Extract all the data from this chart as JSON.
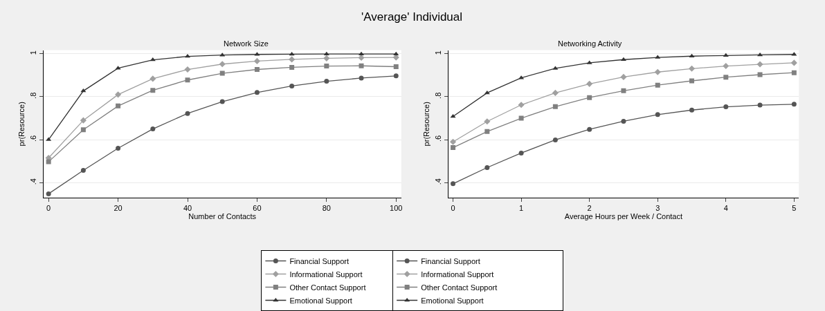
{
  "chart_data": [
    {
      "type": "line",
      "title": "Network Size",
      "annotations": [
        "'Average' Individual"
      ],
      "xlabel": "Number of Contacts",
      "ylabel": "pr(Resource)",
      "x": [
        0,
        10,
        20,
        30,
        40,
        50,
        60,
        70,
        80,
        90,
        100
      ],
      "xlim": [
        -1.5,
        101.5
      ],
      "xticks": [
        0,
        20,
        40,
        60,
        80,
        100
      ],
      "ylim": [
        0.33,
        1.017
      ],
      "yticks": [
        {
          "value": 0.4,
          "label": ".4"
        },
        {
          "value": 0.6,
          "label": ".6"
        },
        {
          "value": 0.8,
          "label": ".8"
        },
        {
          "value": 1,
          "label": "1"
        }
      ],
      "grid": "y",
      "legend": "bottom",
      "line_style": "solid",
      "series": [
        {
          "name": "Financial Support",
          "color": "#555555",
          "marker": "circle",
          "values": [
            0.348,
            0.457,
            0.56,
            0.65,
            0.722,
            0.777,
            0.82,
            0.85,
            0.872,
            0.887,
            0.897
          ]
        },
        {
          "name": "Informational Support",
          "color": "#a0a0a0",
          "marker": "diamond",
          "values": [
            0.515,
            0.69,
            0.81,
            0.884,
            0.927,
            0.952,
            0.966,
            0.974,
            0.979,
            0.982,
            0.983
          ]
        },
        {
          "name": "Other Contact Support",
          "color": "#808080",
          "marker": "square",
          "values": [
            0.497,
            0.646,
            0.757,
            0.83,
            0.878,
            0.909,
            0.927,
            0.937,
            0.943,
            0.944,
            0.94
          ]
        },
        {
          "name": "Emotional Support",
          "color": "#333333",
          "marker": "triangle",
          "values": [
            0.6,
            0.827,
            0.933,
            0.972,
            0.988,
            0.994,
            0.997,
            0.998,
            0.999,
            0.999,
            0.999
          ]
        }
      ]
    },
    {
      "type": "line",
      "title": "Networking Activity",
      "xlabel": "Average Hours per Week / Contact",
      "ylabel": "pr(Resource)",
      "x": [
        0,
        0.5,
        1,
        1.5,
        2,
        2.5,
        3,
        3.5,
        4,
        4.5,
        5
      ],
      "xlim": [
        -0.07,
        5.07
      ],
      "xticks": [
        0,
        1,
        2,
        3,
        4,
        5
      ],
      "ylim": [
        0.33,
        1.017
      ],
      "yticks": [
        {
          "value": 0.4,
          "label": ".4"
        },
        {
          "value": 0.6,
          "label": ".6"
        },
        {
          "value": 0.8,
          "label": ".8"
        },
        {
          "value": 1,
          "label": "1"
        }
      ],
      "grid": "y",
      "legend": "bottom",
      "line_style": "solid",
      "series": [
        {
          "name": "Financial Support",
          "color": "#555555",
          "marker": "circle",
          "values": [
            0.395,
            0.47,
            0.538,
            0.599,
            0.648,
            0.686,
            0.717,
            0.738,
            0.753,
            0.761,
            0.765
          ]
        },
        {
          "name": "Informational Support",
          "color": "#a0a0a0",
          "marker": "diamond",
          "values": [
            0.59,
            0.685,
            0.762,
            0.818,
            0.86,
            0.892,
            0.915,
            0.931,
            0.943,
            0.951,
            0.958
          ]
        },
        {
          "name": "Other Contact Support",
          "color": "#808080",
          "marker": "square",
          "values": [
            0.563,
            0.638,
            0.7,
            0.754,
            0.796,
            0.828,
            0.854,
            0.874,
            0.891,
            0.903,
            0.912
          ]
        },
        {
          "name": "Emotional Support",
          "color": "#333333",
          "marker": "triangle",
          "values": [
            0.708,
            0.818,
            0.888,
            0.932,
            0.958,
            0.973,
            0.983,
            0.989,
            0.992,
            0.995,
            0.997
          ]
        }
      ]
    }
  ]
}
